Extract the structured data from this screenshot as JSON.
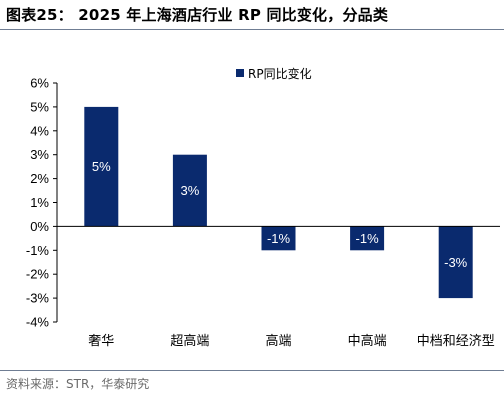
{
  "figure": {
    "title": "图表25：  2025 年上海酒店行业 RP 同比变化，分品类",
    "source": "资料来源：STR，华泰研究"
  },
  "colors": {
    "bar": "#0a2a6e",
    "axis": "#000000",
    "rule": "#6f7d93"
  },
  "chart_data": {
    "type": "bar",
    "categories": [
      "奢华",
      "超高端",
      "高端",
      "中高端",
      "中档和经济型"
    ],
    "series": [
      {
        "name": "RP同比变化",
        "values": [
          5,
          3,
          -1,
          -1,
          -3
        ],
        "labels": [
          "5%",
          "3%",
          "-1%",
          "-1%",
          "-3%"
        ]
      }
    ],
    "y_ticks": [
      6,
      5,
      4,
      3,
      2,
      1,
      0,
      -1,
      -2,
      -3,
      -4
    ],
    "y_tick_labels": [
      "6%",
      "5%",
      "4%",
      "3%",
      "2%",
      "1%",
      "0%",
      "-1%",
      "-2%",
      "-3%",
      "-4%"
    ],
    "ylim": [
      -4,
      6
    ],
    "grid": false,
    "legend": "top-right",
    "xlabel": "",
    "ylabel": ""
  }
}
